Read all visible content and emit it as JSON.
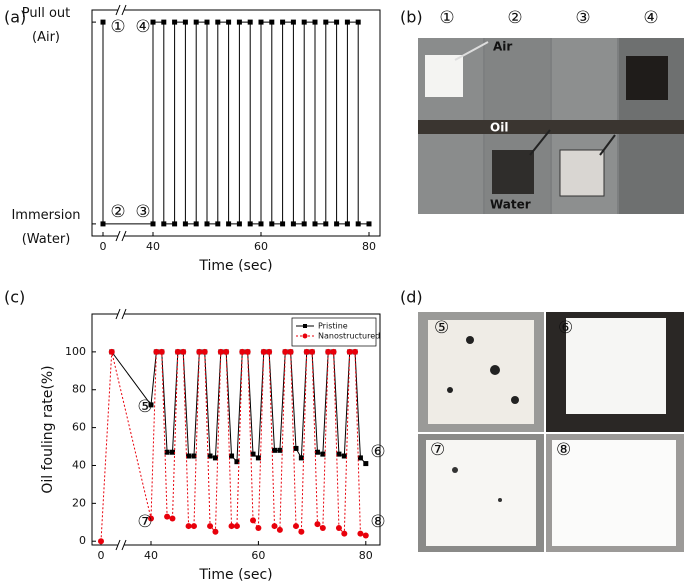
{
  "chart_data": [
    {
      "type": "line",
      "panel_label": "(a)",
      "x_label": "Time (sec)",
      "xlim": [
        -2,
        82
      ],
      "xticks": [
        0,
        40,
        60,
        80
      ],
      "ylim": [
        -0.06,
        1.06
      ],
      "yticks": [
        {
          "value": 0,
          "label": "Immersion (Water)"
        },
        {
          "value": 1,
          "label": "Pull out (Air)"
        }
      ],
      "series": [
        {
          "color": "#000000",
          "marker": "square",
          "dash": "solid",
          "x": [
            0,
            0,
            40,
            40,
            42,
            42,
            44,
            44,
            46,
            46,
            48,
            48,
            50,
            50,
            52,
            52,
            54,
            54,
            56,
            56,
            58,
            58,
            60,
            60,
            62,
            62,
            64,
            64,
            66,
            66,
            68,
            68,
            70,
            70,
            72,
            72,
            74,
            74,
            76,
            76,
            78,
            78,
            80
          ],
          "values": [
            1,
            0,
            0,
            1,
            1,
            0,
            0,
            1,
            1,
            0,
            0,
            1,
            1,
            0,
            0,
            1,
            1,
            0,
            0,
            1,
            1,
            0,
            0,
            1,
            1,
            0,
            0,
            1,
            1,
            0,
            0,
            1,
            1,
            0,
            0,
            1,
            1,
            0,
            0,
            1,
            1,
            0,
            0
          ]
        }
      ],
      "annotations": [
        "①",
        "②",
        "③",
        "④"
      ]
    },
    {
      "type": "line",
      "panel_label": "(c)",
      "x_label": "Time (sec)",
      "y_label": "Oil fouling rate(%)",
      "xlim": [
        -2,
        82
      ],
      "xticks": [
        0,
        40,
        60,
        80
      ],
      "ylim": [
        -2,
        120
      ],
      "yticks": [
        0,
        20,
        40,
        60,
        80,
        100
      ],
      "legend": "upper right",
      "series": [
        {
          "name": "Pristine",
          "color": "#000000",
          "marker": "square",
          "dash": "solid",
          "x": [
            2,
            40,
            41,
            42,
            43,
            44,
            45,
            46,
            47,
            48,
            49,
            50,
            51,
            52,
            53,
            54,
            55,
            56,
            57,
            58,
            59,
            60,
            61,
            62,
            63,
            64,
            65,
            66,
            67,
            68,
            69,
            70,
            71,
            72,
            73,
            74,
            75,
            76,
            77,
            78,
            79,
            80
          ],
          "values": [
            100,
            72,
            100,
            100,
            47,
            47,
            100,
            100,
            45,
            45,
            100,
            100,
            45,
            44,
            100,
            100,
            45,
            42,
            100,
            100,
            46,
            44,
            100,
            100,
            48,
            48,
            100,
            100,
            49,
            44,
            100,
            100,
            47,
            46,
            100,
            100,
            46,
            45,
            100,
            100,
            44,
            41
          ]
        },
        {
          "name": "Nanostructured",
          "color": "#e8000b",
          "marker": "circle",
          "dash": "dotted",
          "x": [
            0,
            2,
            40,
            41,
            42,
            43,
            44,
            45,
            46,
            47,
            48,
            49,
            50,
            51,
            52,
            53,
            54,
            55,
            56,
            57,
            58,
            59,
            60,
            61,
            62,
            63,
            64,
            65,
            66,
            67,
            68,
            69,
            70,
            71,
            72,
            73,
            74,
            75,
            76,
            77,
            78,
            79,
            80
          ],
          "values": [
            0,
            100,
            12,
            100,
            100,
            13,
            12,
            100,
            100,
            8,
            8,
            100,
            100,
            8,
            5,
            100,
            100,
            8,
            8,
            100,
            100,
            11,
            7,
            100,
            100,
            8,
            6,
            100,
            100,
            8,
            5,
            100,
            100,
            9,
            7,
            100,
            100,
            7,
            4,
            100,
            100,
            4,
            3
          ]
        }
      ],
      "annotations": [
        "⑤",
        "⑥",
        "⑦",
        "⑧"
      ]
    }
  ],
  "panel_b": {
    "label": "(b)",
    "columns": [
      "①",
      "②",
      "③",
      "④"
    ],
    "labels": [
      "Air",
      "Oil",
      "Water"
    ]
  },
  "panel_d": {
    "label": "(d)",
    "photos": [
      "⑤",
      "⑥",
      "⑦",
      "⑧"
    ]
  }
}
